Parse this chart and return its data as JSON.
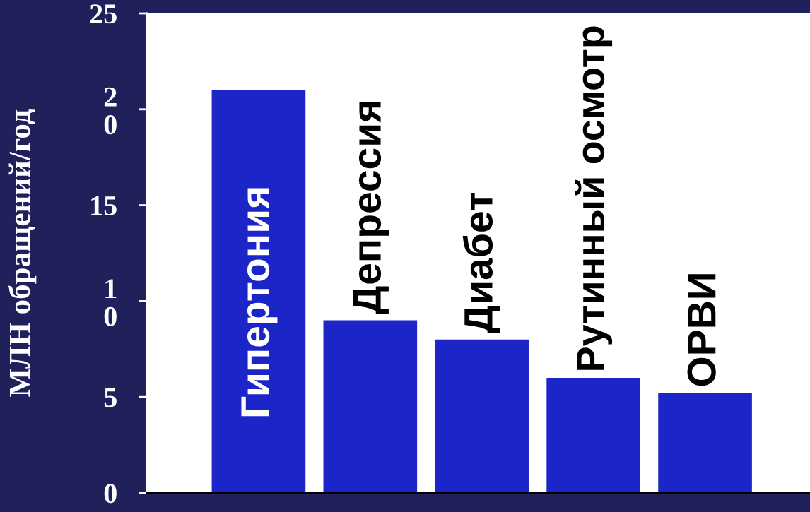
{
  "chart_data": {
    "type": "bar",
    "ylabel": "МЛН обращений/год",
    "categories": [
      "Гипертония",
      "Депрессия",
      "Диабет",
      "Рутинный осмотр",
      "ОРВИ"
    ],
    "values": [
      21,
      9,
      8,
      6,
      5.2
    ],
    "color": "#1c26c8",
    "ylim": [
      0,
      25
    ],
    "yticks": [
      0,
      5,
      {
        "value": 10,
        "label": "1\n0"
      },
      15,
      {
        "value": 20,
        "label": "2\n0"
      },
      25
    ]
  }
}
